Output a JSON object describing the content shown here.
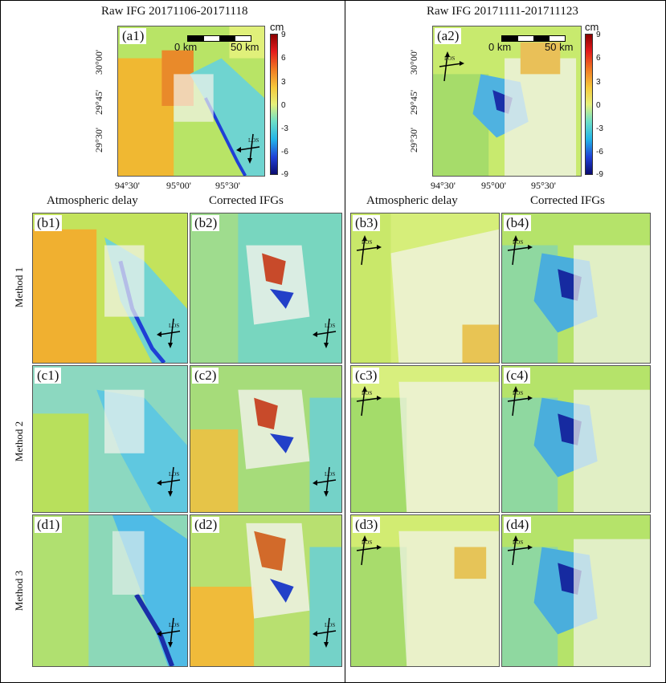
{
  "left_title": "Raw IFG 20171106-20171118",
  "right_title": "Raw IFG 20171111-201711123",
  "col_titles": {
    "atm_left": "Atmospheric delay",
    "cor_left": "Corrected IFGs",
    "atm_right": "Atmospheric delay",
    "cor_right": "Corrected IFGs"
  },
  "row_labels": [
    "Method 1",
    "Method 2",
    "Method 3"
  ],
  "panel_labels": {
    "a1": "(a1)",
    "a2": "(a2)",
    "b1": "(b1)",
    "b2": "(b2)",
    "b3": "(b3)",
    "b4": "(b4)",
    "c1": "(c1)",
    "c2": "(c2)",
    "c3": "(c3)",
    "c4": "(c4)",
    "d1": "(d1)",
    "d2": "(d2)",
    "d3": "(d3)",
    "d4": "(d4)"
  },
  "colorbar": {
    "unit": "cm",
    "ticks": [
      "9",
      "6",
      "3",
      "0",
      "-3",
      "-6",
      "-9"
    ]
  },
  "lat_ticks": [
    "30°00'",
    "29°45'",
    "29°30'"
  ],
  "lon_ticks": [
    "94°30'",
    "95°00'",
    "95°30'"
  ],
  "scalebar": {
    "start": "0 km",
    "end": "50 km"
  },
  "los_label": "LOS"
}
